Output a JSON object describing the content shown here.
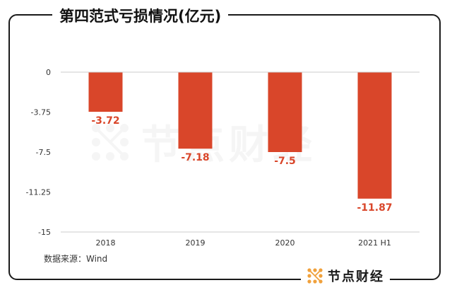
{
  "title": "第四范式亏损情况(亿元)",
  "source": "数据来源：Wind",
  "brand": {
    "name": "节点财经",
    "watermark": "节点财经"
  },
  "colors": {
    "bar": "#d9462a",
    "label": "#d9462a",
    "axis": "#cccccc",
    "text": "#333333",
    "brand_accent": "#f0a13c"
  },
  "chart_data": {
    "type": "bar",
    "title": "第四范式亏损情况(亿元)",
    "categories": [
      "2018",
      "2019",
      "2020",
      "2021 H1"
    ],
    "values": [
      -3.72,
      -7.18,
      -7.5,
      -11.87
    ],
    "value_labels": [
      "-3.72",
      "-7.18",
      "-7.5",
      "-11.87"
    ],
    "yticks": [
      0,
      -3.75,
      -7.5,
      -11.25,
      -15
    ],
    "ytick_labels": [
      "0",
      "-3.75",
      "-7.5",
      "-11.25",
      "-15"
    ],
    "ylim": [
      -15,
      0
    ],
    "grid": false,
    "legend": "none",
    "xlabel": "",
    "ylabel": ""
  }
}
